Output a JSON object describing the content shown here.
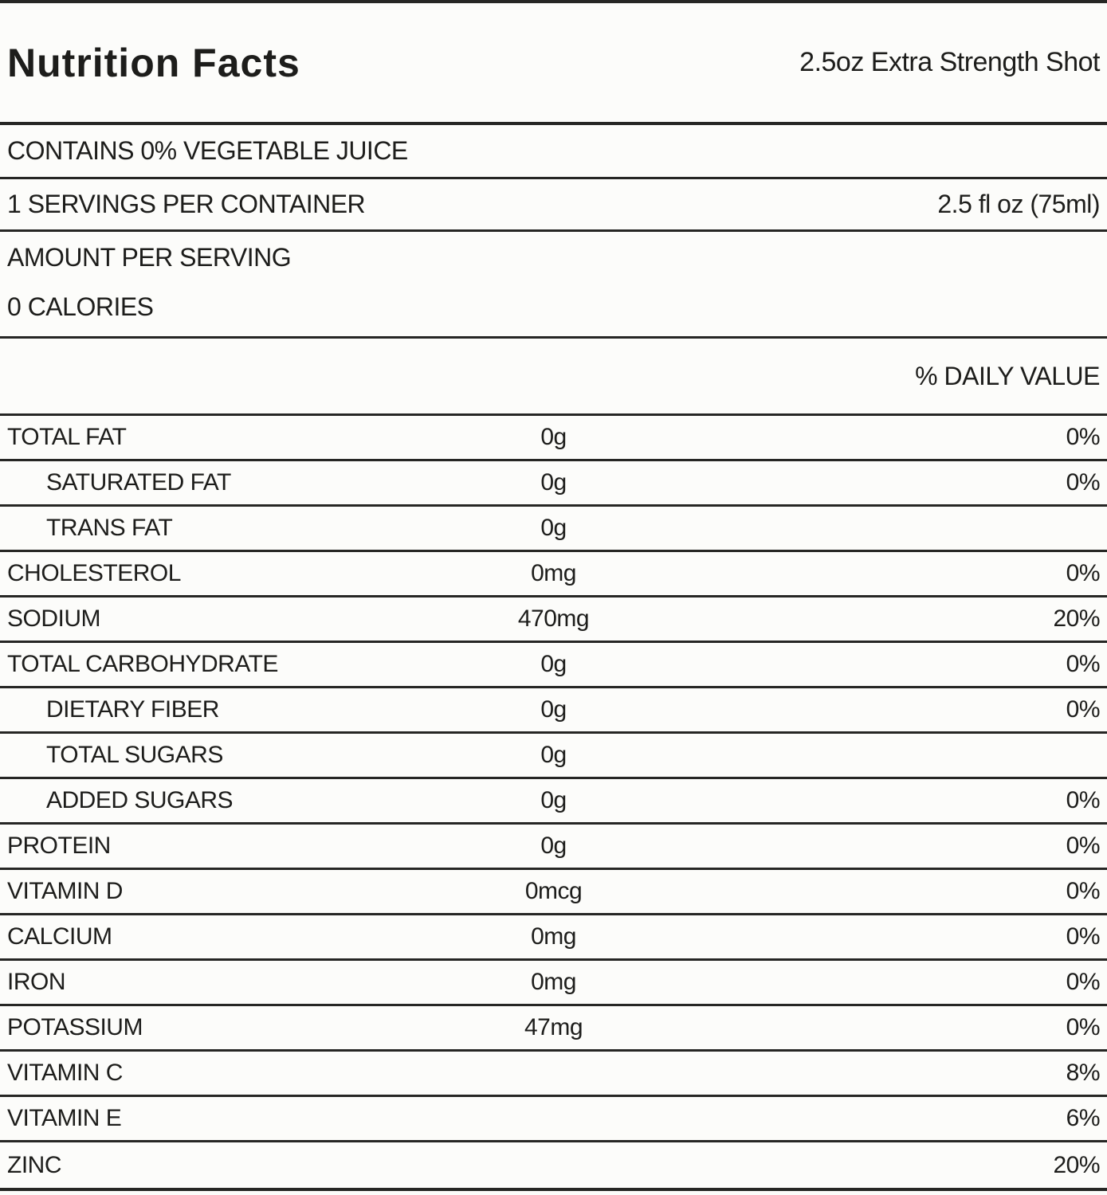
{
  "label": {
    "title": "Nutrition Facts",
    "product": "2.5oz Extra Strength Shot",
    "contains_statement": "CONTAINS 0% VEGETABLE JUICE",
    "servings_per_container": "1 SERVINGS PER CONTAINER",
    "serving_size": "2.5 fl oz (75ml)",
    "amount_per_serving": "AMOUNT PER SERVING",
    "calories": "0 CALORIES",
    "daily_value_header": "% DAILY VALUE",
    "rows": [
      {
        "name": "TOTAL FAT",
        "amount": "0g",
        "dv": "0%",
        "indent": false
      },
      {
        "name": "SATURATED FAT",
        "amount": "0g",
        "dv": "0%",
        "indent": true
      },
      {
        "name": "TRANS FAT",
        "amount": "0g",
        "dv": "",
        "indent": true
      },
      {
        "name": "CHOLESTEROL",
        "amount": "0mg",
        "dv": "0%",
        "indent": false
      },
      {
        "name": "SODIUM",
        "amount": "470mg",
        "dv": "20%",
        "indent": false
      },
      {
        "name": "TOTAL CARBOHYDRATE",
        "amount": "0g",
        "dv": "0%",
        "indent": false
      },
      {
        "name": "DIETARY FIBER",
        "amount": "0g",
        "dv": "0%",
        "indent": true
      },
      {
        "name": "TOTAL SUGARS",
        "amount": "0g",
        "dv": "",
        "indent": true
      },
      {
        "name": "ADDED SUGARS",
        "amount": "0g",
        "dv": "0%",
        "indent": true
      },
      {
        "name": "PROTEIN",
        "amount": "0g",
        "dv": "0%",
        "indent": false
      },
      {
        "name": "VITAMIN D",
        "amount": "0mcg",
        "dv": "0%",
        "indent": false
      },
      {
        "name": "CALCIUM",
        "amount": "0mg",
        "dv": "0%",
        "indent": false
      },
      {
        "name": "IRON",
        "amount": "0mg",
        "dv": "0%",
        "indent": false
      },
      {
        "name": "POTASSIUM",
        "amount": "47mg",
        "dv": "0%",
        "indent": false
      },
      {
        "name": "VITAMIN C",
        "amount": "",
        "dv": "8%",
        "indent": false
      },
      {
        "name": "VITAMIN E",
        "amount": "",
        "dv": "6%",
        "indent": false
      },
      {
        "name": "ZINC",
        "amount": "",
        "dv": "20%",
        "indent": false
      }
    ],
    "colors": {
      "text": "#1d1d1b",
      "rule": "#262624",
      "background": "#fcfcfa"
    }
  }
}
